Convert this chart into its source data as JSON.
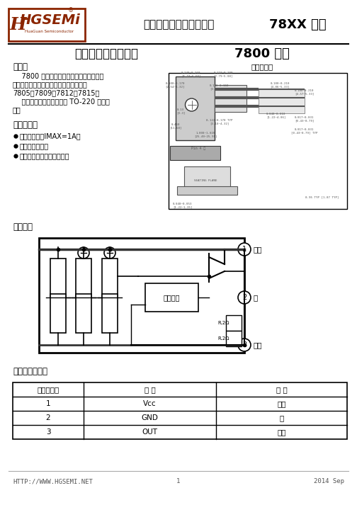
{
  "title_company": "广东华冠半导体有限公司",
  "title_series": "78XX 系列",
  "subtitle_circuit": "三端固定正稳压电路",
  "subtitle_series": "7800 系列",
  "logo_text": "HGSEMi",
  "logo_sub": "HuaGuan Semiconductor",
  "section_overview": "概述：",
  "overview_lines": [
    "    7800 系列是用于各种电视机、收录机、",
    "电子仪器、设备的稳压电源电路。品种有",
    "7805、7809、7812、7815。",
    "    采用三引线带散热片塑料 TO-220 封装形",
    "式。"
  ],
  "section_features": "主要特点：",
  "features": [
    "输出电流大，IMAX=1A。",
    "无需外接元件。",
    "内设过热、短路保护电路。"
  ],
  "package_title": "封装外形图",
  "section_block": "功能框图",
  "protection_box": "保护电路",
  "r_label1": "R.2Ω",
  "r_label2": "R.2Ω",
  "section_pinout": "引出端功能符号",
  "table_headers": [
    "引出端序号",
    "符 号",
    "功 能"
  ],
  "table_rows": [
    [
      "1",
      "Vcc",
      "电源"
    ],
    [
      "2",
      "GND",
      "地"
    ],
    [
      "3",
      "OUT",
      "输出"
    ]
  ],
  "terminal_labels": [
    "电源",
    "地",
    "输出"
  ],
  "footer_url": "HTTP://WWW.HGSEMI.NET",
  "footer_page": "1",
  "footer_year": "2014 Sep",
  "bg_color": "#ffffff",
  "logo_color": "#8B2500",
  "text_color": "#000000",
  "dim_color": "#555555"
}
